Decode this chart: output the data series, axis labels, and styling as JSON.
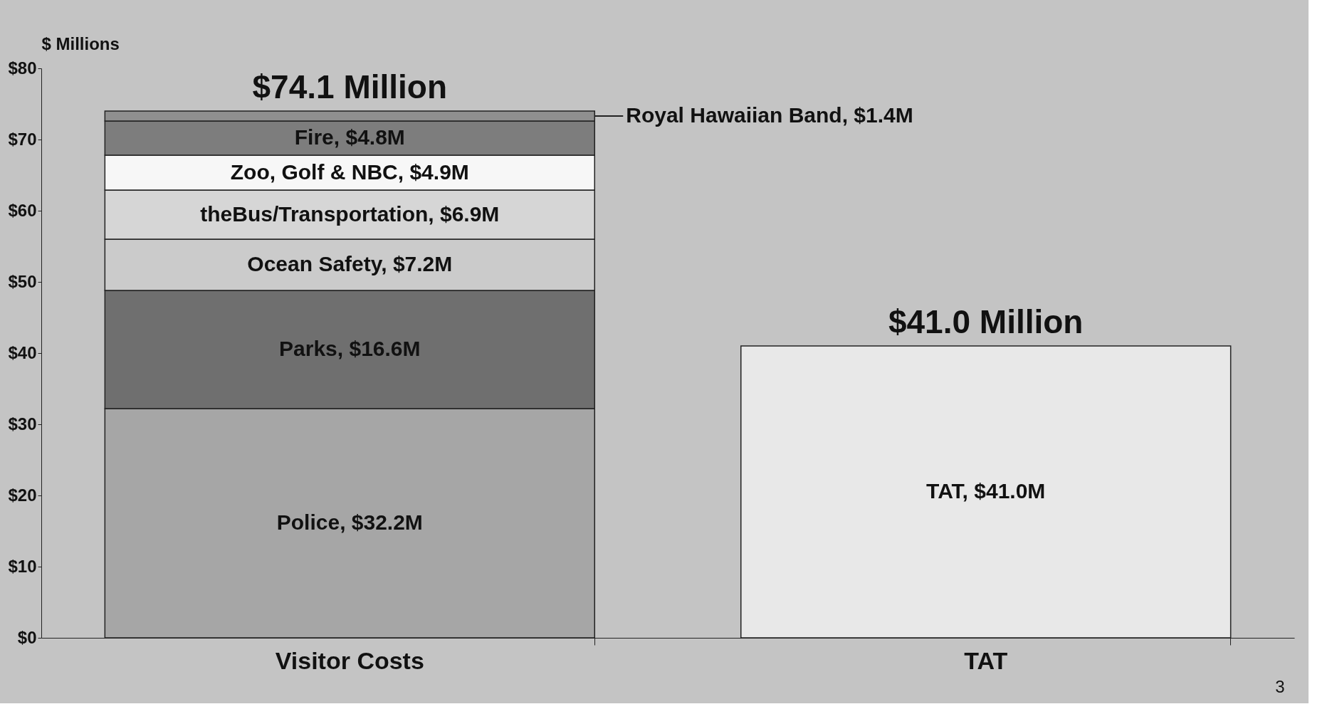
{
  "chart_data": {
    "type": "bar",
    "stacked": true,
    "ylabel": "$ Millions",
    "categories": [
      "Visitor Costs",
      "TAT"
    ],
    "series": [
      {
        "color": "#a6a6a6",
        "values": [
          32.2,
          null
        ],
        "value_labels": [
          "Police, $32.2M",
          null
        ]
      },
      {
        "color": "#6f6f6f",
        "values": [
          16.6,
          null
        ],
        "value_labels": [
          "Parks, $16.6M",
          null
        ]
      },
      {
        "color": "#cbcbcb",
        "values": [
          7.2,
          null
        ],
        "value_labels": [
          "Ocean Safety, $7.2M",
          null
        ]
      },
      {
        "color": "#d6d6d6",
        "values": [
          6.9,
          null
        ],
        "value_labels": [
          "theBus/Transportation, $6.9M",
          null
        ]
      },
      {
        "color": "#f7f7f7",
        "values": [
          4.9,
          null
        ],
        "value_labels": [
          "Zoo, Golf & NBC, $4.9M",
          null
        ]
      },
      {
        "color": "#7d7d7d",
        "values": [
          4.8,
          null
        ],
        "value_labels": [
          "Fire, $4.8M",
          null
        ]
      },
      {
        "color": "#8f8f8f",
        "values": [
          1.4,
          null
        ],
        "value_labels": [
          "Royal Hawaiian Band, $1.4M",
          null
        ]
      },
      {
        "color": "#e8e8e8",
        "values": [
          null,
          41.0
        ],
        "value_labels": [
          null,
          "TAT, $41.0M"
        ]
      }
    ],
    "totals": [
      "$74.1 Million",
      "$41.0 Million"
    ],
    "ylim": [
      0,
      80
    ],
    "yticks": [
      {
        "value": 0,
        "label": "$0"
      },
      {
        "value": 10,
        "label": "$10"
      },
      {
        "value": 20,
        "label": "$20"
      },
      {
        "value": 30,
        "label": "$30"
      },
      {
        "value": 40,
        "label": "$40"
      },
      {
        "value": 50,
        "label": "$50"
      },
      {
        "value": 60,
        "label": "$60"
      },
      {
        "value": 70,
        "label": "$70"
      },
      {
        "value": 80,
        "label": "$80"
      }
    ],
    "grid": false,
    "annotations": [
      "3"
    ]
  }
}
